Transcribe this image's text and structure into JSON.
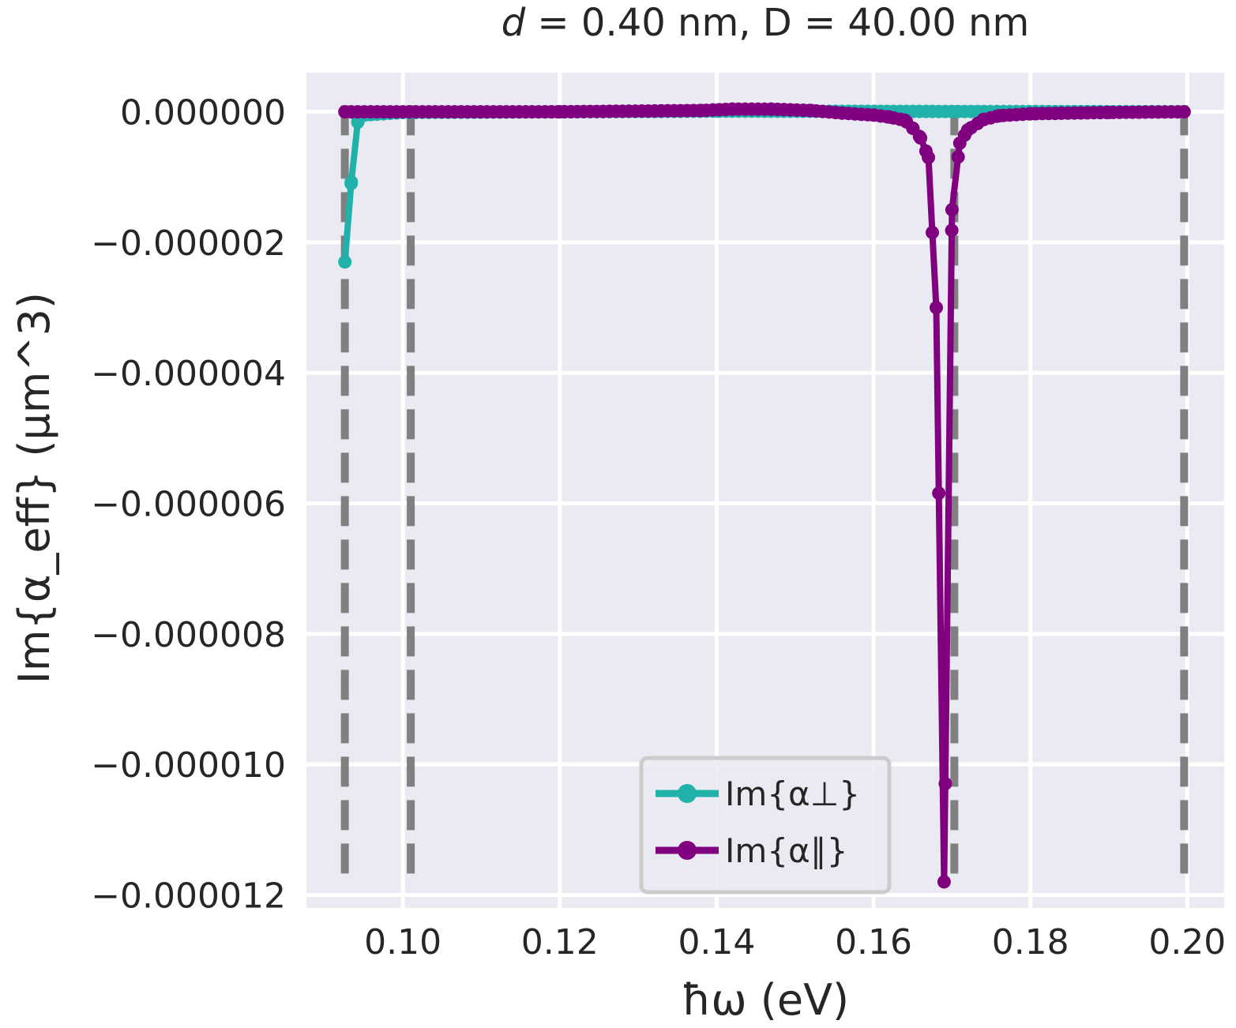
{
  "chart_data": {
    "type": "line",
    "title": {
      "italic": "d",
      "rest": " = 0.40 nm, D = 40.00 nm"
    },
    "xlabel": "ħω (eV)",
    "ylabel": "Im{α_eff} (μm^3)",
    "xlim": [
      0.0877,
      0.2047
    ],
    "ylim": [
      -1.22e-05,
      6e-07
    ],
    "x_ticks": [
      0.1,
      0.12,
      0.14,
      0.16,
      0.18,
      0.2
    ],
    "x_tick_labels": [
      "0.10",
      "0.12",
      "0.14",
      "0.16",
      "0.18",
      "0.20"
    ],
    "y_ticks": [
      0,
      -2e-06,
      -4e-06,
      -6e-06,
      -8e-06,
      -1e-05,
      -1.2e-05
    ],
    "y_tick_labels": [
      "0.000000",
      "−0.000002",
      "−0.000004",
      "−0.000006",
      "−0.000008",
      "−0.000010",
      "−0.000012"
    ],
    "grid": true,
    "legend_position": "bottom-center",
    "vlines": {
      "x": [
        0.0926,
        0.101,
        0.1703,
        0.1996
      ],
      "y_range": [
        -1.18e-05,
        1e-07
      ],
      "color": "#808080",
      "style": "dashed"
    },
    "series": [
      {
        "name": "Im{α⊥}",
        "color": "#20b2aa",
        "x_start": 0.0926,
        "x_end": 0.1996,
        "points": 131,
        "values_sparse": [
          [
            0.0926,
            -2.3e-06
          ],
          [
            0.0934,
            -1.1e-06
          ],
          [
            0.0943,
            -1e-07
          ],
          [
            0.0951,
            -5e-08
          ],
          [
            0.1,
            -1e-08
          ],
          [
            0.14,
            1e-08
          ],
          [
            0.1996,
            0.0
          ]
        ]
      },
      {
        "name": "Im{α∥}",
        "color": "#800080",
        "x_start": 0.0926,
        "x_end": 0.1996,
        "points": 131,
        "values_sparse": [
          [
            0.0926,
            0.0
          ],
          [
            0.12,
            0.0
          ],
          [
            0.138,
            2e-08
          ],
          [
            0.142,
            4e-08
          ],
          [
            0.147,
            4e-08
          ],
          [
            0.152,
            2e-08
          ],
          [
            0.156,
            -2e-08
          ],
          [
            0.16,
            -5e-08
          ],
          [
            0.162,
            -8e-08
          ],
          [
            0.164,
            -1.3e-07
          ],
          [
            0.165,
            -2.5e-07
          ],
          [
            0.166,
            -4e-07
          ],
          [
            0.167,
            -7e-07
          ],
          [
            0.168,
            -3e-06
          ],
          [
            0.169,
            -1.18e-05
          ],
          [
            0.17,
            -1.5e-06
          ],
          [
            0.171,
            -4.8e-07
          ],
          [
            0.172,
            -2.8e-07
          ],
          [
            0.174,
            -1.2e-07
          ],
          [
            0.176,
            -6e-08
          ],
          [
            0.18,
            -3e-08
          ],
          [
            0.19,
            -1e-08
          ],
          [
            0.1996,
            0.0
          ]
        ]
      }
    ]
  }
}
